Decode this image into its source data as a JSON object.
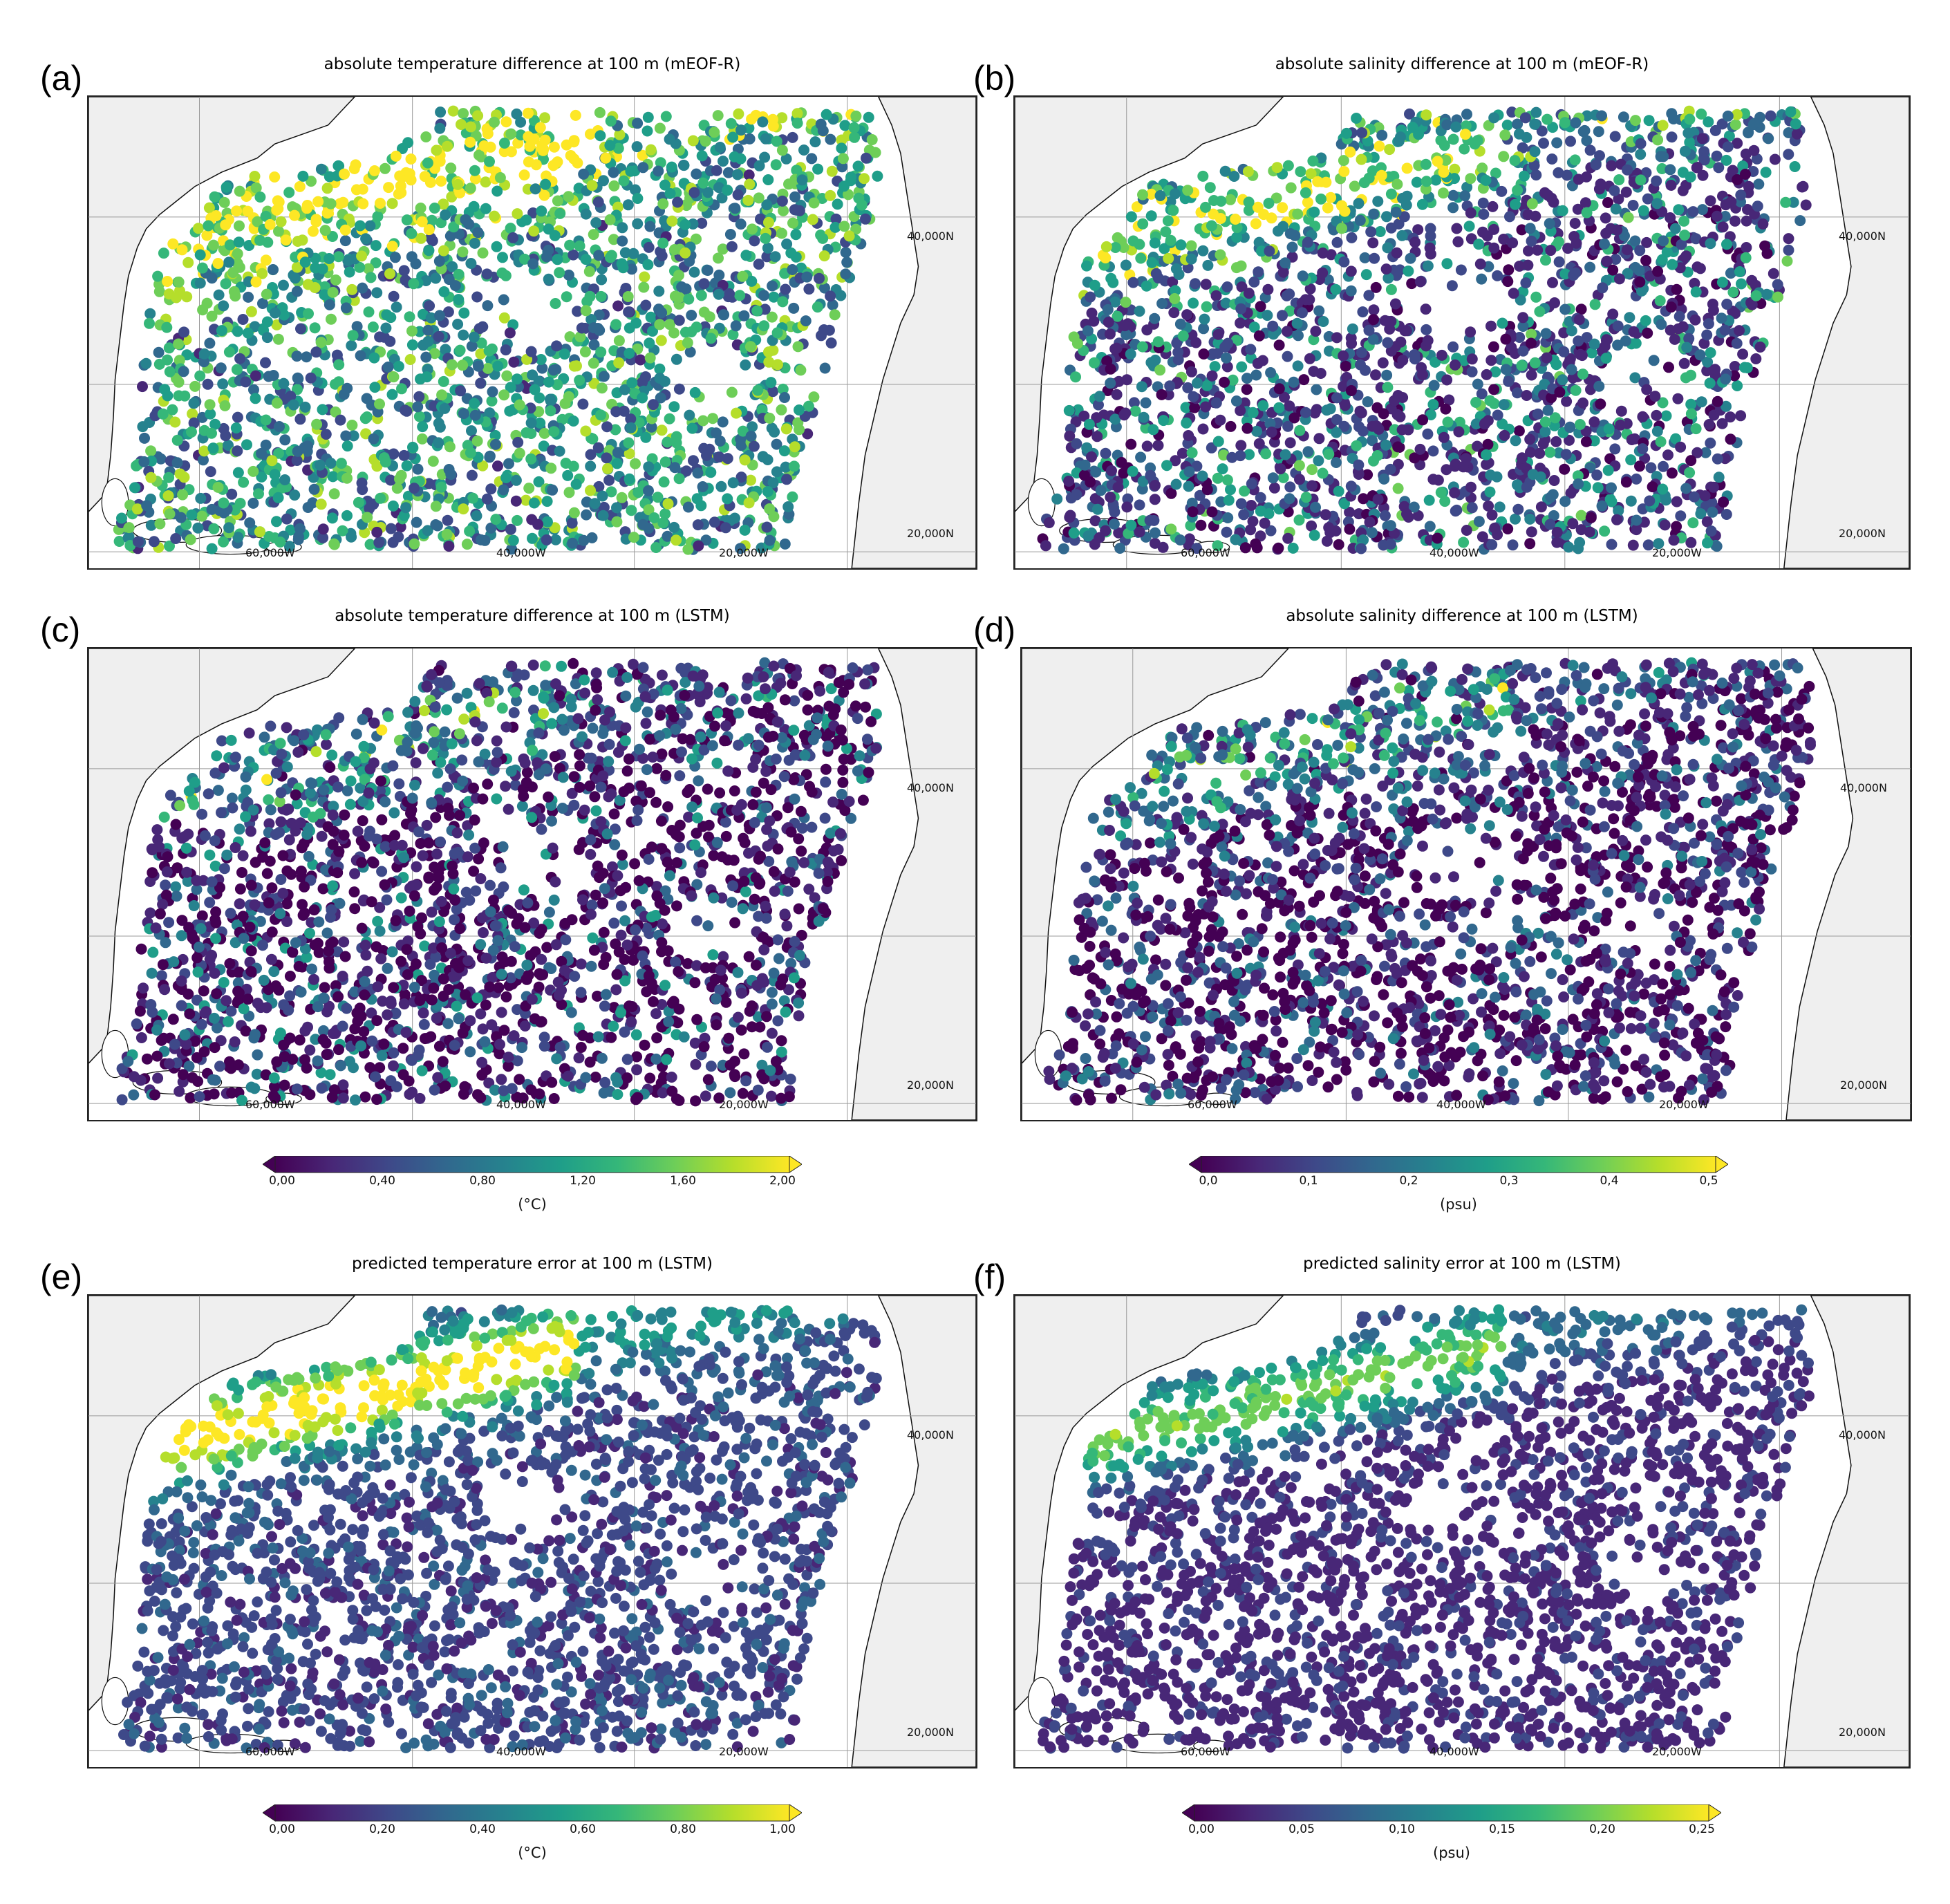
{
  "panels": [
    {
      "id": "a",
      "letter": "(a)",
      "title": "absolute temperature difference at 100 m (mEOF-R)",
      "scheme": "A",
      "seed": 11
    },
    {
      "id": "b",
      "letter": "(b)",
      "title": "absolute salinity difference at 100 m (mEOF-R)",
      "scheme": "B",
      "seed": 23
    },
    {
      "id": "c",
      "letter": "(c)",
      "title": "absolute temperature difference at 100 m (LSTM)",
      "scheme": "C",
      "seed": 37
    },
    {
      "id": "d",
      "letter": "(d)",
      "title": "absolute salinity difference at 100 m (LSTM)",
      "scheme": "D",
      "seed": 41
    },
    {
      "id": "e",
      "letter": "(e)",
      "title": "predicted temperature error at 100 m (LSTM)",
      "scheme": "E",
      "seed": 53
    },
    {
      "id": "f",
      "letter": "(f)",
      "title": "predicted salinity error at 100 m (LSTM)",
      "scheme": "F",
      "seed": 67
    }
  ],
  "axis_labels": {
    "lat_40": "40,000N",
    "lat_20": "20,000N",
    "lon_60": "60,000W",
    "lon_40": "40,000W",
    "lon_20": "20,000W"
  },
  "colorbars": [
    {
      "id": "cb1",
      "ticks": [
        "0,00",
        "0,40",
        "0,80",
        "1,20",
        "1,60",
        "2,00"
      ],
      "unit": "(°C)",
      "range": [
        0,
        2.0
      ]
    },
    {
      "id": "cb2",
      "ticks": [
        "0,0",
        "0,1",
        "0,2",
        "0,3",
        "0,4",
        "0,5"
      ],
      "unit": "(psu)",
      "range": [
        0,
        0.5
      ]
    },
    {
      "id": "cb3",
      "ticks": [
        "0,00",
        "0,20",
        "0,40",
        "0,60",
        "0,80",
        "1,00"
      ],
      "unit": "(°C)",
      "range": [
        0,
        1.0
      ]
    },
    {
      "id": "cb4",
      "ticks": [
        "0,00",
        "0,05",
        "0,10",
        "0,15",
        "0,20",
        "0,25"
      ],
      "unit": "(psu)",
      "range": [
        0,
        0.25
      ]
    }
  ],
  "colors": {
    "land": "#efefef",
    "coast": "#111111",
    "grid": "#9a9a9a",
    "viridis": [
      "#440154",
      "#482777",
      "#3e4989",
      "#31688e",
      "#26828e",
      "#1f9e89",
      "#35b779",
      "#6ece58",
      "#b5de2b",
      "#fde725"
    ]
  },
  "map_extent": {
    "lon": [
      -76,
      0
    ],
    "lat": [
      17,
      46
    ]
  }
}
